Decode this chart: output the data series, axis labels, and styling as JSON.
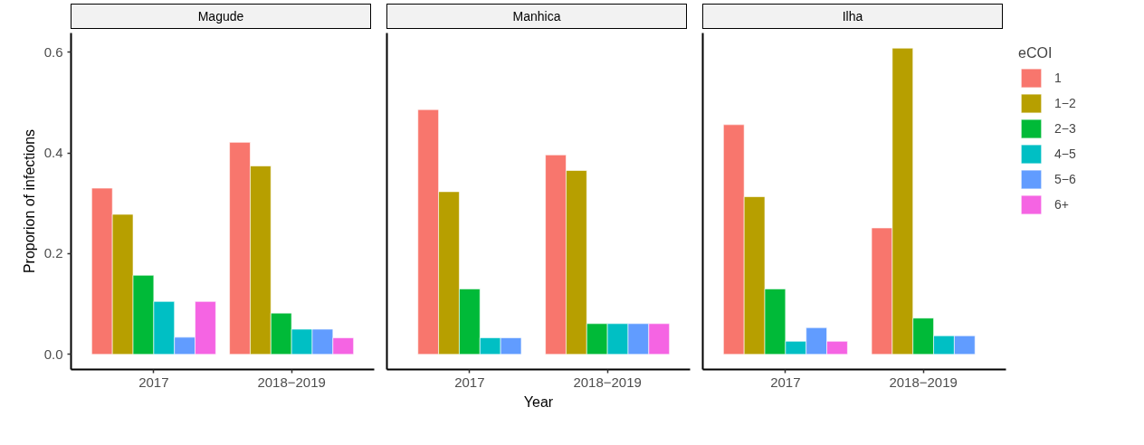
{
  "chart_data": [
    {
      "type": "bar",
      "title": "Magude",
      "ylabel": "Proporion of infections",
      "categories": [
        "2017",
        "2018−2019"
      ],
      "ylim": [
        -0.03,
        0.638
      ],
      "yticks": [
        {
          "value": 0,
          "label": "0.0"
        },
        0.2,
        0.4,
        0.6
      ],
      "series": [
        {
          "color": "#f8766d",
          "values": [
            0.33,
            0.421
          ]
        },
        {
          "color": "#b79f00",
          "values": [
            0.278,
            0.374
          ]
        },
        {
          "color": "#00ba38",
          "values": [
            0.157,
            0.082
          ]
        },
        {
          "color": "#00bfc4",
          "values": [
            0.105,
            0.05
          ]
        },
        {
          "color": "#619cff",
          "values": [
            0.034,
            0.05
          ]
        },
        {
          "color": "#f564e3",
          "values": [
            0.105,
            0.033
          ]
        }
      ]
    },
    {
      "type": "bar",
      "title": "Manhica",
      "xlabel": "Year",
      "categories": [
        "2017",
        "2018−2019"
      ],
      "ylim": [
        -0.03,
        0.638
      ],
      "tick_labels": "x",
      "series": [
        {
          "color": "#f8766d",
          "values": [
            0.486,
            0.396
          ]
        },
        {
          "color": "#b79f00",
          "values": [
            0.323,
            0.365
          ]
        },
        {
          "color": "#00ba38",
          "values": [
            0.13,
            0.061
          ]
        },
        {
          "color": "#00bfc4",
          "values": [
            0.033,
            0.061
          ]
        },
        {
          "color": "#619cff",
          "values": [
            0.033,
            0.061
          ]
        },
        {
          "color": "#f564e3",
          "values": [
            null,
            0.061
          ]
        }
      ]
    },
    {
      "type": "bar",
      "title": "Ilha",
      "categories": [
        "2017",
        "2018−2019"
      ],
      "ylim": [
        -0.03,
        0.638
      ],
      "tick_labels": "x",
      "legend": "right",
      "legend_title": "eCOI",
      "series": [
        {
          "name": "1",
          "color": "#f8766d",
          "values": [
            0.456,
            0.251
          ]
        },
        {
          "name": "1−2",
          "color": "#b79f00",
          "values": [
            0.313,
            0.608
          ]
        },
        {
          "name": "2−3",
          "color": "#00ba38",
          "values": [
            0.13,
            0.072
          ]
        },
        {
          "name": "4−5",
          "color": "#00bfc4",
          "values": [
            0.026,
            0.037
          ]
        },
        {
          "name": "5−6",
          "color": "#619cff",
          "values": [
            0.053,
            0.037
          ]
        },
        {
          "name": "6+",
          "color": "#f564e3",
          "values": [
            0.026,
            null
          ]
        }
      ]
    }
  ]
}
